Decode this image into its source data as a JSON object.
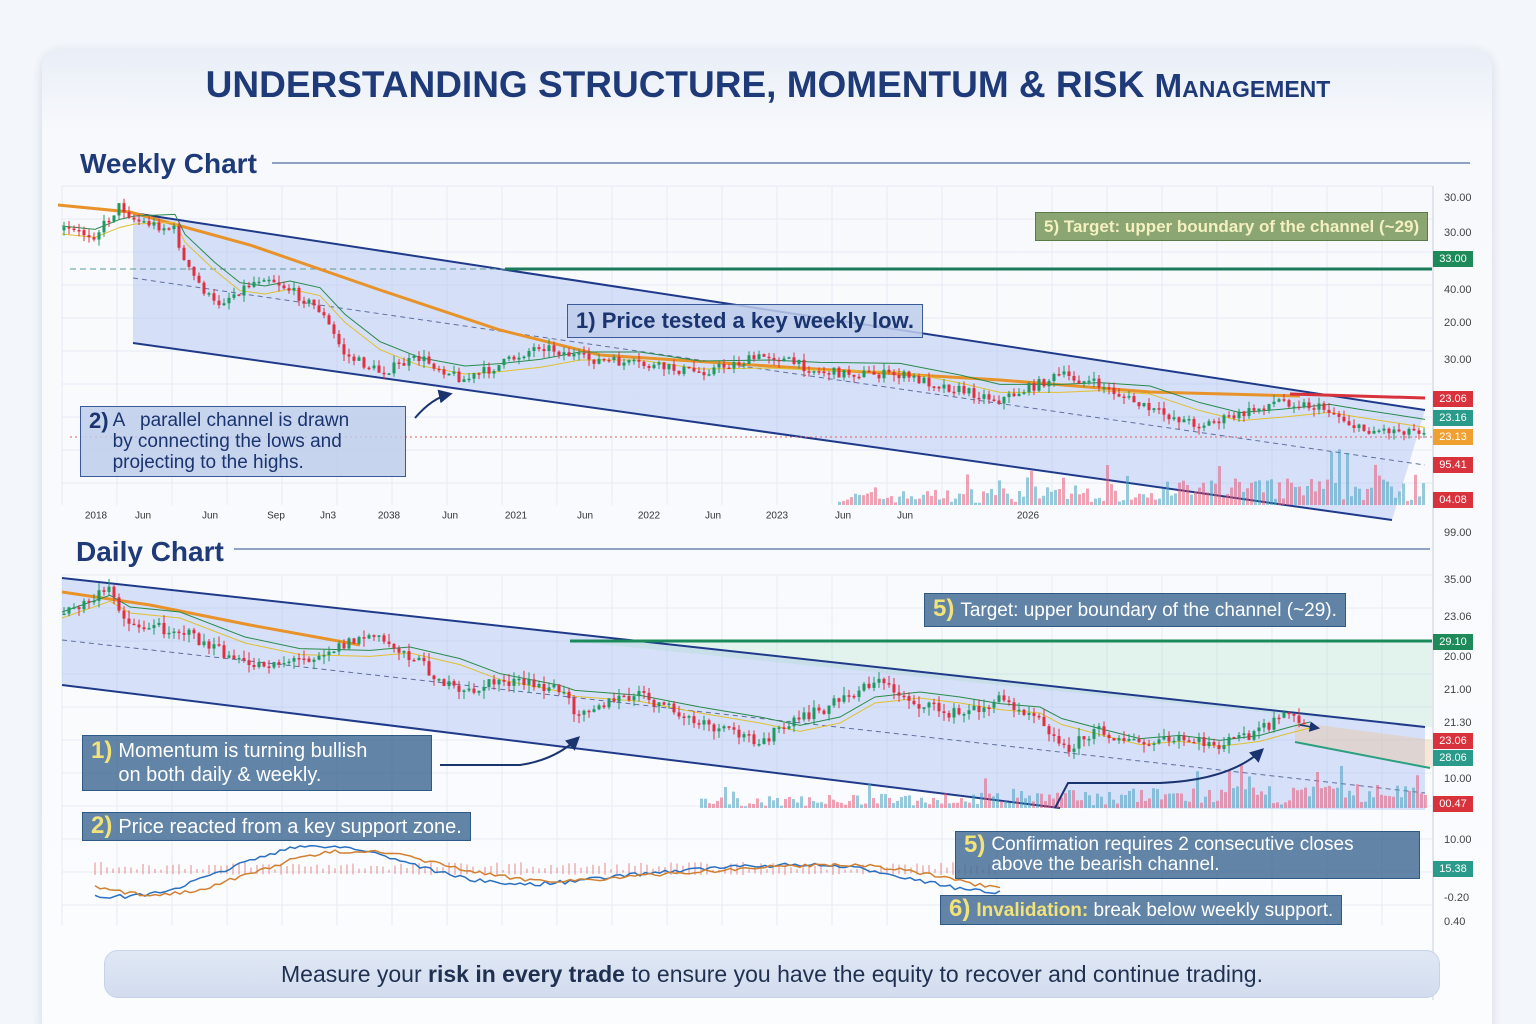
{
  "title": {
    "main": "UNDERSTANDING STRUCTURE, MOMENTUM & RISK",
    "tail": "Management"
  },
  "weekly": {
    "heading": "Weekly Chart",
    "x_labels": [
      "2018",
      "Jun",
      "Jun",
      "Sep",
      "Jn3",
      "2038",
      "Jun",
      "2021",
      "Jun",
      "2022",
      "Jun",
      "2023",
      "Jun",
      "Jun",
      "2026"
    ],
    "y_labels": [
      "30.00",
      "30.00",
      "40.00",
      "20.00",
      "30.00"
    ],
    "price_tags": [
      {
        "label": "33.00",
        "color": "#1e8a5a"
      },
      {
        "label": "23.06",
        "color": "#d8323c"
      },
      {
        "label": "23.16",
        "color": "#2a9a8a"
      },
      {
        "label": "23.13",
        "color": "#f0a030"
      },
      {
        "label": "95.41",
        "color": "#d8323c"
      },
      {
        "label": "04.08",
        "color": "#d8323c"
      }
    ],
    "annotations": [
      {
        "num": "5)",
        "text": "Target: upper boundary of the channel (~29)"
      },
      {
        "num": "1)",
        "text": "Price tested a key weekly low."
      },
      {
        "num": "2)",
        "lines": [
          "A   parallel channel is drawn",
          "by connecting the lows and",
          "projecting to the highs."
        ]
      }
    ]
  },
  "daily": {
    "heading": "Daily Chart",
    "y_labels": [
      "99.00",
      "35.00",
      "23.06",
      "20.00",
      "21.00",
      "21.30",
      "10.00",
      "10.00",
      "-0.20",
      "0.40"
    ],
    "price_tags": [
      {
        "label": "29.10",
        "color": "#1e8a5a"
      },
      {
        "label": "23.06",
        "color": "#d8323c"
      },
      {
        "label": "28.06",
        "color": "#2a9a8a"
      },
      {
        "label": "00.47",
        "color": "#d8323c"
      },
      {
        "label": "15.38",
        "color": "#2a9a8a"
      }
    ],
    "annotations": [
      {
        "num": "5)",
        "text": "Target: upper boundary of the channel (~29)."
      },
      {
        "num": "1)",
        "lines": [
          "Momentum is turning bullish",
          "on both daily & weekly."
        ]
      },
      {
        "num": "2)",
        "text": "Price reacted from a key support zone."
      },
      {
        "num": "5)",
        "lines": [
          "Confirmation requires 2 consecutive closes",
          "above the bearish channel."
        ]
      },
      {
        "num": "6)",
        "bold": "Invalidation:",
        "text": " break below weekly support."
      }
    ]
  },
  "footer": {
    "before": "Measure your ",
    "bold": "risk in every trade",
    "after": " to ensure you have the equity to recover and continue trading."
  }
}
